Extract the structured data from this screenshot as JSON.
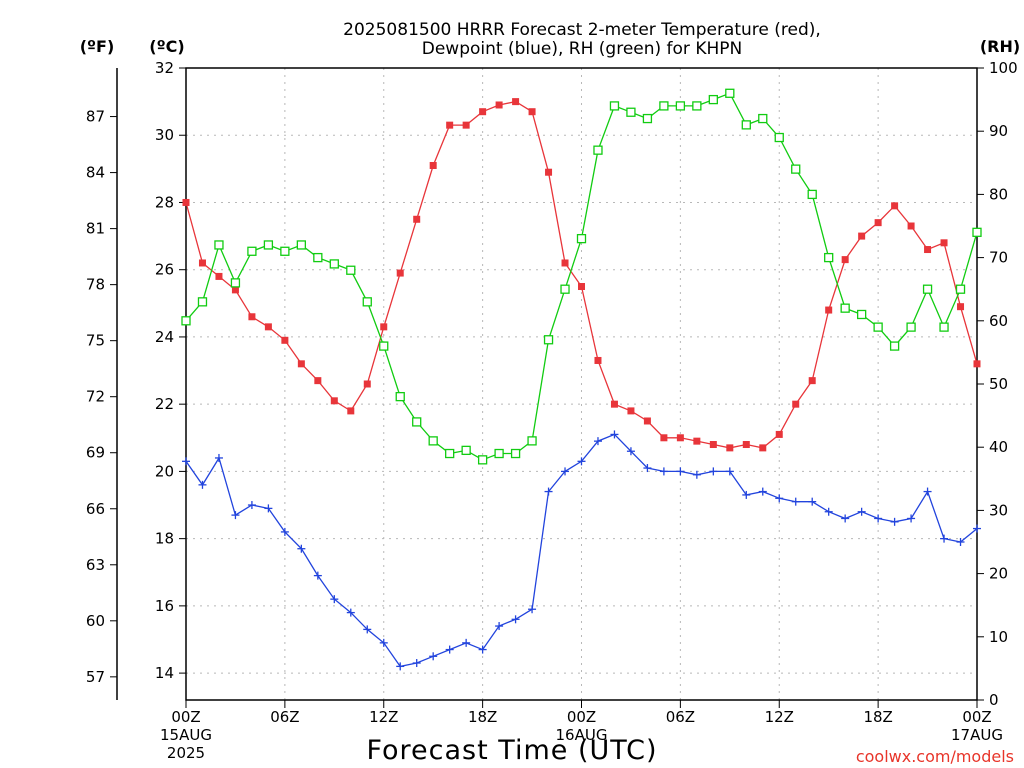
{
  "title_line1": "2025081500 HRRR Forecast 2-meter Temperature (red),",
  "title_line2": "Dewpoint (blue), RH (green) for KHPN",
  "left_unit_f": "(ºF)",
  "left_unit_c": "(ºC)",
  "right_unit": "(RH)",
  "x_axis_title": "Forecast Time (UTC)",
  "watermark": "coolwx.com/models",
  "colors": {
    "temperature": "#e8353a",
    "dewpoint": "#2244dd",
    "rh": "#11cc11",
    "grid": "#b8b8b8",
    "watermark": "#e8352a"
  },
  "chart_data": {
    "type": "line",
    "title": "2025081500 HRRR Forecast 2-meter Temperature (red), Dewpoint (blue), RH (green) for KHPN",
    "xlabel": "Forecast Time (UTC)",
    "ylabel_left_celsius": "(ºC)",
    "ylabel_left_fahrenheit": "(ºF)",
    "ylabel_right": "(RH)",
    "x": [
      0,
      1,
      2,
      3,
      4,
      5,
      6,
      7,
      8,
      9,
      10,
      11,
      12,
      13,
      14,
      15,
      16,
      17,
      18,
      19,
      20,
      21,
      22,
      23,
      24,
      25,
      26,
      27,
      28,
      29,
      30,
      31,
      32,
      33,
      34,
      35,
      36,
      37,
      38,
      39,
      40,
      41,
      42,
      43,
      44,
      45,
      46,
      47,
      48
    ],
    "x_ticks": [
      {
        "x": 0,
        "label": "00Z",
        "sub1": "15AUG",
        "sub2": "2025"
      },
      {
        "x": 6,
        "label": "06Z",
        "sub1": "",
        "sub2": ""
      },
      {
        "x": 12,
        "label": "12Z",
        "sub1": "",
        "sub2": ""
      },
      {
        "x": 18,
        "label": "18Z",
        "sub1": "",
        "sub2": ""
      },
      {
        "x": 24,
        "label": "00Z",
        "sub1": "16AUG",
        "sub2": ""
      },
      {
        "x": 30,
        "label": "06Z",
        "sub1": "",
        "sub2": ""
      },
      {
        "x": 36,
        "label": "12Z",
        "sub1": "",
        "sub2": ""
      },
      {
        "x": 42,
        "label": "18Z",
        "sub1": "",
        "sub2": ""
      },
      {
        "x": 48,
        "label": "00Z",
        "sub1": "17AUG",
        "sub2": ""
      }
    ],
    "xlim": [
      0,
      48
    ],
    "ylim_celsius": [
      13.2,
      32
    ],
    "ylim_rh": [
      0,
      100
    ],
    "celsius_ticks": [
      14,
      16,
      18,
      20,
      22,
      24,
      26,
      28,
      30,
      32
    ],
    "fahrenheit_ticks": [
      57,
      60,
      63,
      66,
      69,
      72,
      75,
      78,
      81,
      84,
      87
    ],
    "rh_ticks": [
      0,
      10,
      20,
      30,
      40,
      50,
      60,
      70,
      80,
      90,
      100
    ],
    "grid": true,
    "series": [
      {
        "name": "Temperature",
        "axis": "celsius",
        "color": "#e8353a",
        "marker": "filled-square",
        "values": [
          28.0,
          26.2,
          25.8,
          25.4,
          24.6,
          24.3,
          23.9,
          23.2,
          22.7,
          22.1,
          21.8,
          22.6,
          24.3,
          25.9,
          27.5,
          29.1,
          30.3,
          30.3,
          30.7,
          30.9,
          31.0,
          30.7,
          28.9,
          26.2,
          25.5,
          23.3,
          22.0,
          21.8,
          21.5,
          21.0,
          21.0,
          20.9,
          20.8,
          20.7,
          20.8,
          20.7,
          21.1,
          22.0,
          22.7,
          24.8,
          26.3,
          27.0,
          27.4,
          27.9,
          27.3,
          26.6,
          26.8,
          24.9,
          23.2
        ]
      },
      {
        "name": "Dewpoint",
        "axis": "celsius",
        "color": "#2244dd",
        "marker": "plus",
        "values": [
          20.3,
          19.6,
          20.4,
          18.7,
          19.0,
          18.9,
          18.2,
          17.7,
          16.9,
          16.2,
          15.8,
          15.3,
          14.9,
          14.2,
          14.3,
          14.5,
          14.7,
          14.9,
          14.7,
          15.4,
          15.6,
          15.9,
          19.4,
          20.0,
          20.3,
          20.9,
          21.1,
          20.6,
          20.1,
          20.0,
          20.0,
          19.9,
          20.0,
          20.0,
          19.3,
          19.4,
          19.2,
          19.1,
          19.1,
          18.8,
          18.6,
          18.8,
          18.6,
          18.5,
          18.6,
          19.4,
          18.0,
          17.9,
          18.3
        ]
      },
      {
        "name": "RH",
        "axis": "rh",
        "color": "#11cc11",
        "marker": "open-square",
        "values": [
          60,
          63,
          72,
          66,
          71,
          72,
          71,
          72,
          70,
          69,
          68,
          63,
          56,
          48,
          44,
          41,
          39,
          39.5,
          38,
          39,
          39,
          41,
          57,
          65,
          73,
          87,
          94,
          93,
          92,
          94,
          94,
          94,
          95,
          96,
          91,
          92,
          89,
          84,
          80,
          70,
          62,
          61,
          59,
          56,
          59,
          65,
          59,
          65,
          74
        ]
      }
    ]
  }
}
